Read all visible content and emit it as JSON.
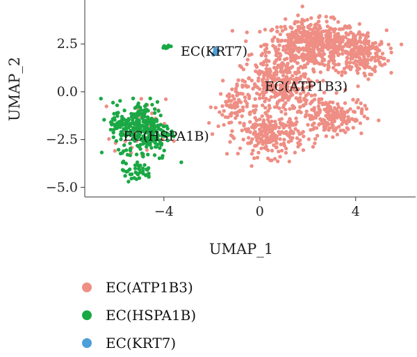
{
  "chart_data": {
    "type": "scatter",
    "xlabel": "UMAP_1",
    "ylabel": "UMAP_2",
    "xlim": [
      -7.3,
      6.5
    ],
    "ylim": [
      -5.5,
      4.8
    ],
    "xticks": [
      -4,
      0,
      4
    ],
    "xtick_labels": [
      "−4",
      "0",
      "4"
    ],
    "yticks": [
      2.5,
      0.0,
      -2.5,
      -5.0
    ],
    "ytick_labels": [
      "2.5",
      "0.0",
      "−2.5",
      "−5.0"
    ],
    "grid": false,
    "legend_position": "bottom",
    "series": [
      {
        "name": "EC(ATP1B3)",
        "color": "#EE8E84",
        "clusters": [
          {
            "cx": 2.2,
            "cy": 2.5,
            "sx": 1.6,
            "sy": 1.0,
            "n": 520
          },
          {
            "cx": 4.2,
            "cy": 2.0,
            "sx": 0.9,
            "sy": 1.0,
            "n": 220
          },
          {
            "cx": 0.8,
            "cy": 0.3,
            "sx": 1.3,
            "sy": 1.2,
            "n": 320
          },
          {
            "cx": 0.5,
            "cy": -2.3,
            "sx": 1.1,
            "sy": 0.9,
            "n": 230
          },
          {
            "cx": 3.0,
            "cy": -1.3,
            "sx": 1.1,
            "sy": 0.8,
            "n": 180
          },
          {
            "cx": -1.2,
            "cy": -0.8,
            "sx": 0.6,
            "sy": 0.9,
            "n": 70
          },
          {
            "cx": -5.0,
            "cy": -2.2,
            "sx": 0.9,
            "sy": 1.5,
            "n": 35
          }
        ]
      },
      {
        "name": "EC(HSPA1B)",
        "color": "#1AA845",
        "clusters": [
          {
            "cx": -4.8,
            "cy": -2.0,
            "sx": 0.9,
            "sy": 1.3,
            "n": 260
          },
          {
            "cx": -5.8,
            "cy": -1.6,
            "sx": 0.5,
            "sy": 0.6,
            "n": 50
          },
          {
            "cx": -5.2,
            "cy": -4.2,
            "sx": 0.6,
            "sy": 0.4,
            "n": 35
          },
          {
            "cx": -3.9,
            "cy": 2.35,
            "sx": 0.25,
            "sy": 0.08,
            "n": 14
          }
        ]
      },
      {
        "name": "EC(KRT7)",
        "color": "#4C9FD9",
        "clusters": [
          {
            "cx": -1.85,
            "cy": 2.15,
            "sx": 0.1,
            "sy": 0.15,
            "n": 12
          }
        ]
      }
    ],
    "annotations": [
      {
        "text": "EC(KRT7)",
        "x": -3.3,
        "y": 2.15
      },
      {
        "text": "EC(ATP1B3)",
        "x": 0.2,
        "y": 0.3
      },
      {
        "text": "EC(HSPA1B)",
        "x": -5.7,
        "y": -2.3
      }
    ]
  }
}
